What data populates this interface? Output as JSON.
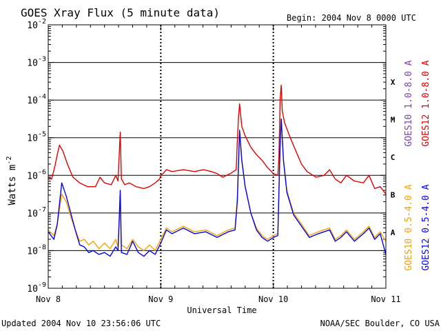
{
  "chart_data": {
    "type": "line",
    "title": "GOES Xray Flux (5 minute data)",
    "begin_label": "Begin:  2004 Nov 8 0000 UTC",
    "xlabel": "Universal Time",
    "ylabel": "Watts m",
    "ylabel_exponent": "-2",
    "yscale": "log",
    "ylim": [
      1e-09,
      0.01
    ],
    "xlim_days": [
      0,
      3
    ],
    "x_ticks": [
      {
        "day": 0,
        "label": "Nov 8"
      },
      {
        "day": 1,
        "label": "Nov 9"
      },
      {
        "day": 2,
        "label": "Nov 10"
      },
      {
        "day": 3,
        "label": "Nov 11"
      }
    ],
    "y_ticks": [
      {
        "exp": -2,
        "base": "10",
        "sup": "-2"
      },
      {
        "exp": -3,
        "base": "10",
        "sup": "-3"
      },
      {
        "exp": -4,
        "base": "10",
        "sup": "-4"
      },
      {
        "exp": -5,
        "base": "10",
        "sup": "-5"
      },
      {
        "exp": -6,
        "base": "10",
        "sup": "-6"
      },
      {
        "exp": -7,
        "base": "10",
        "sup": "-7"
      },
      {
        "exp": -8,
        "base": "10",
        "sup": "-8"
      },
      {
        "exp": -9,
        "base": "10",
        "sup": "-9"
      }
    ],
    "flare_classes": [
      {
        "label": "X",
        "exp": -3.5
      },
      {
        "label": "M",
        "exp": -4.5
      },
      {
        "label": "C",
        "exp": -5.5
      },
      {
        "label": "B",
        "exp": -6.5
      },
      {
        "label": "A",
        "exp": -7.5
      }
    ],
    "legend": [
      {
        "label": "GOES10 1.0-8.0 A",
        "color": "#7a3fb0"
      },
      {
        "label": "GOES12 1.0-8.0 A",
        "color": "#dd0000"
      },
      {
        "label": "GOES10 0.5-4.0 A",
        "color": "#f4a000"
      },
      {
        "label": "GOES12 0.5-4.0 A",
        "color": "#0000ee"
      }
    ],
    "series": [
      {
        "name": "GOES12 1.0-8.0 A",
        "color": "#dd0000",
        "points": [
          [
            0.0,
            -6.05
          ],
          [
            0.03,
            -6.1
          ],
          [
            0.06,
            -5.75
          ],
          [
            0.08,
            -5.45
          ],
          [
            0.1,
            -5.2
          ],
          [
            0.13,
            -5.35
          ],
          [
            0.17,
            -5.7
          ],
          [
            0.22,
            -6.05
          ],
          [
            0.28,
            -6.2
          ],
          [
            0.35,
            -6.3
          ],
          [
            0.42,
            -6.3
          ],
          [
            0.46,
            -6.05
          ],
          [
            0.5,
            -6.2
          ],
          [
            0.56,
            -6.25
          ],
          [
            0.6,
            -6.0
          ],
          [
            0.62,
            -6.15
          ],
          [
            0.64,
            -4.85
          ],
          [
            0.65,
            -6.1
          ],
          [
            0.68,
            -6.25
          ],
          [
            0.72,
            -6.2
          ],
          [
            0.78,
            -6.3
          ],
          [
            0.85,
            -6.35
          ],
          [
            0.9,
            -6.3
          ],
          [
            0.95,
            -6.2
          ],
          [
            0.99,
            -6.1
          ],
          [
            1.0,
            -6.0
          ],
          [
            1.02,
            -5.95
          ],
          [
            1.05,
            -5.85
          ],
          [
            1.1,
            -5.9
          ],
          [
            1.2,
            -5.85
          ],
          [
            1.3,
            -5.9
          ],
          [
            1.38,
            -5.85
          ],
          [
            1.45,
            -5.9
          ],
          [
            1.5,
            -5.95
          ],
          [
            1.55,
            -6.05
          ],
          [
            1.62,
            -5.95
          ],
          [
            1.67,
            -5.85
          ],
          [
            1.68,
            -5.1
          ],
          [
            1.69,
            -4.5
          ],
          [
            1.7,
            -4.1
          ],
          [
            1.71,
            -4.4
          ],
          [
            1.72,
            -4.7
          ],
          [
            1.75,
            -4.95
          ],
          [
            1.8,
            -5.25
          ],
          [
            1.85,
            -5.45
          ],
          [
            1.9,
            -5.6
          ],
          [
            1.95,
            -5.8
          ],
          [
            2.0,
            -5.95
          ],
          [
            2.04,
            -6.0
          ],
          [
            2.05,
            -5.5
          ],
          [
            2.06,
            -4.0
          ],
          [
            2.07,
            -3.6
          ],
          [
            2.08,
            -4.3
          ],
          [
            2.1,
            -4.6
          ],
          [
            2.15,
            -5.0
          ],
          [
            2.2,
            -5.35
          ],
          [
            2.25,
            -5.7
          ],
          [
            2.3,
            -5.9
          ],
          [
            2.38,
            -6.05
          ],
          [
            2.45,
            -6.0
          ],
          [
            2.5,
            -5.85
          ],
          [
            2.55,
            -6.1
          ],
          [
            2.6,
            -6.2
          ],
          [
            2.65,
            -6.0
          ],
          [
            2.72,
            -6.15
          ],
          [
            2.8,
            -6.2
          ],
          [
            2.85,
            -6.0
          ],
          [
            2.9,
            -6.35
          ],
          [
            2.95,
            -6.3
          ],
          [
            3.0,
            -6.5
          ]
        ]
      },
      {
        "name": "GOES10 0.5-4.0 A",
        "color": "#f4a000",
        "points": [
          [
            0.0,
            -7.45
          ],
          [
            0.05,
            -7.6
          ],
          [
            0.08,
            -7.3
          ],
          [
            0.12,
            -6.5
          ],
          [
            0.16,
            -6.7
          ],
          [
            0.2,
            -7.1
          ],
          [
            0.24,
            -7.45
          ],
          [
            0.28,
            -7.75
          ],
          [
            0.32,
            -7.7
          ],
          [
            0.36,
            -7.85
          ],
          [
            0.4,
            -7.75
          ],
          [
            0.45,
            -7.95
          ],
          [
            0.5,
            -7.8
          ],
          [
            0.55,
            -7.95
          ],
          [
            0.6,
            -7.7
          ],
          [
            0.62,
            -7.9
          ],
          [
            0.64,
            -6.6
          ],
          [
            0.65,
            -7.85
          ],
          [
            0.7,
            -7.95
          ],
          [
            0.75,
            -7.7
          ],
          [
            0.8,
            -7.9
          ],
          [
            0.85,
            -8.0
          ],
          [
            0.9,
            -7.85
          ],
          [
            0.95,
            -8.0
          ],
          [
            1.0,
            -7.7
          ],
          [
            1.05,
            -7.4
          ],
          [
            1.1,
            -7.5
          ],
          [
            1.2,
            -7.35
          ],
          [
            1.3,
            -7.5
          ],
          [
            1.4,
            -7.45
          ],
          [
            1.5,
            -7.6
          ],
          [
            1.6,
            -7.45
          ],
          [
            1.66,
            -7.4
          ],
          [
            1.68,
            -6.6
          ],
          [
            1.7,
            -4.8
          ],
          [
            1.72,
            -5.6
          ],
          [
            1.75,
            -6.3
          ],
          [
            1.8,
            -7.0
          ],
          [
            1.85,
            -7.4
          ],
          [
            1.9,
            -7.6
          ],
          [
            1.95,
            -7.7
          ],
          [
            2.0,
            -7.6
          ],
          [
            2.04,
            -7.55
          ],
          [
            2.06,
            -5.2
          ],
          [
            2.07,
            -4.5
          ],
          [
            2.09,
            -5.6
          ],
          [
            2.12,
            -6.4
          ],
          [
            2.18,
            -7.0
          ],
          [
            2.25,
            -7.3
          ],
          [
            2.32,
            -7.6
          ],
          [
            2.4,
            -7.5
          ],
          [
            2.5,
            -7.4
          ],
          [
            2.55,
            -7.7
          ],
          [
            2.6,
            -7.6
          ],
          [
            2.65,
            -7.45
          ],
          [
            2.72,
            -7.7
          ],
          [
            2.8,
            -7.5
          ],
          [
            2.85,
            -7.35
          ],
          [
            2.9,
            -7.65
          ],
          [
            2.95,
            -7.5
          ],
          [
            3.0,
            -7.75
          ]
        ]
      },
      {
        "name": "GOES12 0.5-4.0 A",
        "color": "#0000ee",
        "points": [
          [
            0.0,
            -7.5
          ],
          [
            0.05,
            -7.7
          ],
          [
            0.08,
            -7.3
          ],
          [
            0.12,
            -6.2
          ],
          [
            0.16,
            -6.55
          ],
          [
            0.2,
            -7.0
          ],
          [
            0.24,
            -7.45
          ],
          [
            0.28,
            -7.85
          ],
          [
            0.32,
            -7.9
          ],
          [
            0.36,
            -8.05
          ],
          [
            0.4,
            -8.0
          ],
          [
            0.45,
            -8.1
          ],
          [
            0.5,
            -8.05
          ],
          [
            0.55,
            -8.15
          ],
          [
            0.6,
            -7.9
          ],
          [
            0.62,
            -8.0
          ],
          [
            0.64,
            -6.4
          ],
          [
            0.65,
            -8.05
          ],
          [
            0.7,
            -8.1
          ],
          [
            0.75,
            -7.75
          ],
          [
            0.8,
            -8.05
          ],
          [
            0.85,
            -8.15
          ],
          [
            0.9,
            -8.0
          ],
          [
            0.95,
            -8.1
          ],
          [
            1.0,
            -7.8
          ],
          [
            1.05,
            -7.45
          ],
          [
            1.1,
            -7.55
          ],
          [
            1.2,
            -7.4
          ],
          [
            1.3,
            -7.55
          ],
          [
            1.4,
            -7.5
          ],
          [
            1.5,
            -7.65
          ],
          [
            1.6,
            -7.5
          ],
          [
            1.66,
            -7.45
          ],
          [
            1.68,
            -6.7
          ],
          [
            1.7,
            -4.8
          ],
          [
            1.72,
            -5.6
          ],
          [
            1.75,
            -6.3
          ],
          [
            1.8,
            -7.0
          ],
          [
            1.85,
            -7.45
          ],
          [
            1.9,
            -7.65
          ],
          [
            1.95,
            -7.75
          ],
          [
            2.0,
            -7.65
          ],
          [
            2.04,
            -7.6
          ],
          [
            2.06,
            -5.2
          ],
          [
            2.07,
            -4.5
          ],
          [
            2.09,
            -5.6
          ],
          [
            2.12,
            -6.45
          ],
          [
            2.18,
            -7.05
          ],
          [
            2.25,
            -7.35
          ],
          [
            2.32,
            -7.65
          ],
          [
            2.4,
            -7.55
          ],
          [
            2.5,
            -7.45
          ],
          [
            2.55,
            -7.75
          ],
          [
            2.6,
            -7.65
          ],
          [
            2.65,
            -7.5
          ],
          [
            2.72,
            -7.75
          ],
          [
            2.8,
            -7.55
          ],
          [
            2.85,
            -7.4
          ],
          [
            2.9,
            -7.7
          ],
          [
            2.95,
            -7.55
          ],
          [
            3.0,
            -8.1
          ]
        ]
      }
    ]
  },
  "footer": {
    "updated": "Updated 2004 Nov 10 23:56:06 UTC",
    "source": "NOAA/SEC Boulder, CO USA"
  }
}
